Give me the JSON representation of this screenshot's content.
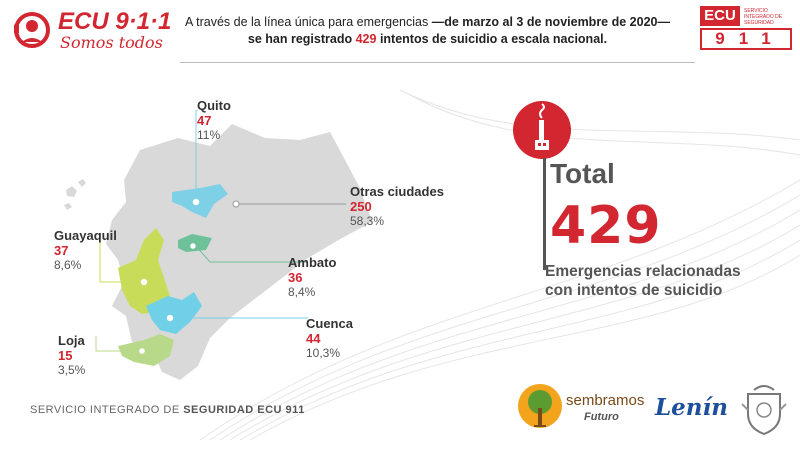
{
  "header": {
    "logo_text": "ECU 9·1·1",
    "logo_tagline": "Somos todos",
    "headline_line1": "A través de la línea única para emergencias",
    "headline_line1_bold": "—de marzo al 3 de noviembre de 2020—",
    "headline_line2_a": "se han registrado",
    "headline_line2_num": "429",
    "headline_line2_b": "intentos de suicidio a escala nacional.",
    "badge_top": "ECU",
    "badge_num": "911",
    "badge_caption": "SERVICIO INTEGRADO DE SEGURIDAD"
  },
  "cities": {
    "quito": {
      "name": "Quito",
      "value": "47",
      "pct": "11%"
    },
    "otras": {
      "name": "Otras ciudades",
      "value": "250",
      "pct": "58,3%"
    },
    "guayaquil": {
      "name": "Guayaquil",
      "value": "37",
      "pct": "8,6%"
    },
    "ambato": {
      "name": "Ambato",
      "value": "36",
      "pct": "8,4%"
    },
    "cuenca": {
      "name": "Cuenca",
      "value": "44",
      "pct": "10,3%"
    },
    "loja": {
      "name": "Loja",
      "value": "15",
      "pct": "3,5%"
    }
  },
  "total": {
    "label": "Total",
    "value": "429",
    "desc_line1": "Emergencias relacionadas",
    "desc_line2": "con intentos de suicidio"
  },
  "footer": {
    "text_light": "SERVICIO INTEGRADO DE",
    "text_bold": "SEGURIDAD ECU 911"
  },
  "sponsors": {
    "sembramos": "sembramos",
    "futuro": "Futuro",
    "lenin": "Lenín"
  },
  "colors": {
    "accent": "#d22630",
    "map_base": "#d9d9d9",
    "quito": "#7ed0e6",
    "ambato": "#6fc19a",
    "guayaquil": "#c8dc5a",
    "cuenca": "#6fd0e8",
    "loja": "#b9d98a"
  }
}
